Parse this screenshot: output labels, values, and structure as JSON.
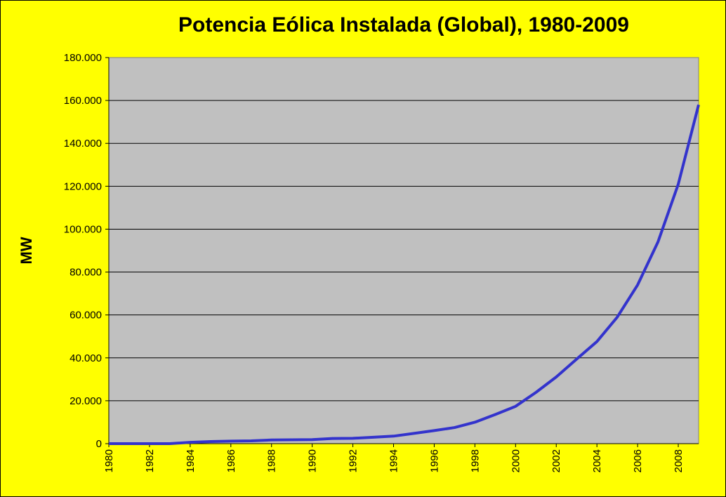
{
  "chart_data": {
    "type": "line",
    "title": "Potencia Eólica Instalada (Global), 1980-2009",
    "y_label": "MW",
    "x": [
      1980,
      1981,
      1982,
      1983,
      1984,
      1985,
      1986,
      1987,
      1988,
      1989,
      1990,
      1991,
      1992,
      1993,
      1994,
      1995,
      1996,
      1997,
      1998,
      1999,
      2000,
      2001,
      2002,
      2003,
      2004,
      2005,
      2006,
      2007,
      2008,
      2009
    ],
    "series": [
      {
        "name": "MW",
        "color": "#3333cc",
        "values": [
          0,
          0,
          0,
          0,
          600,
          1000,
          1200,
          1300,
          1700,
          1800,
          1900,
          2400,
          2500,
          3000,
          3500,
          4800,
          6100,
          7500,
          10000,
          13600,
          17400,
          23900,
          31100,
          39400,
          47600,
          59000,
          74000,
          94000,
          121000,
          158000
        ]
      }
    ],
    "xlim": [
      1980,
      2009
    ],
    "xticks": [
      1980,
      1982,
      1984,
      1986,
      1988,
      1990,
      1992,
      1994,
      1996,
      1998,
      2000,
      2002,
      2004,
      2006,
      2008
    ],
    "ylim": [
      0,
      180000
    ],
    "yticks": [
      {
        "value": 0,
        "label": "0"
      },
      {
        "value": 20000,
        "label": "20.000"
      },
      {
        "value": 40000,
        "label": "40.000"
      },
      {
        "value": 60000,
        "label": "60.000"
      },
      {
        "value": 80000,
        "label": "80.000"
      },
      {
        "value": 100000,
        "label": "100.000"
      },
      {
        "value": 120000,
        "label": "120.000"
      },
      {
        "value": 140000,
        "label": "140.000"
      },
      {
        "value": 160000,
        "label": "160.000"
      },
      {
        "value": 180000,
        "label": "180.000"
      }
    ],
    "grid": true,
    "background": "#ffff00",
    "plot_background": "#c0c0c0"
  }
}
